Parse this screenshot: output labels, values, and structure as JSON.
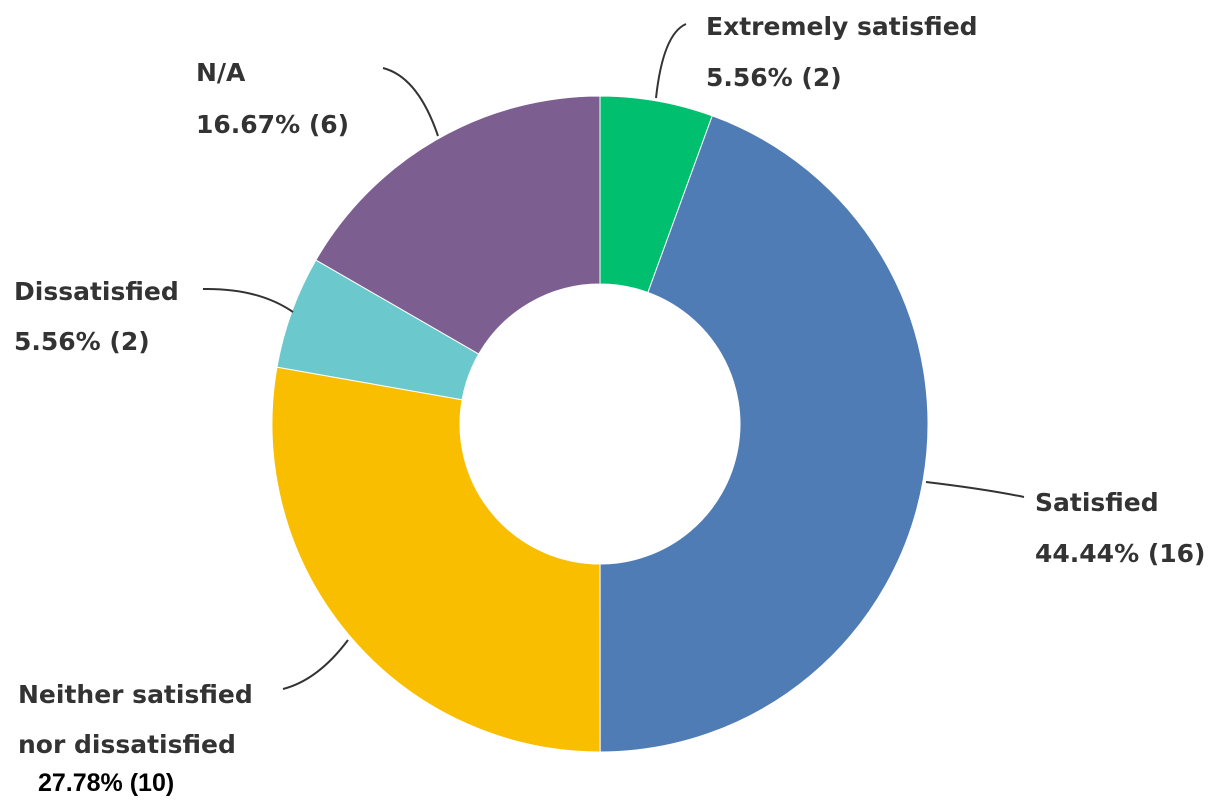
{
  "chart_data": {
    "type": "pie",
    "donut": true,
    "slices": [
      {
        "label": "Extremely satisfied",
        "value": 5.56,
        "count": 2,
        "value_text": "5.56% (2)",
        "color": "#00BF6F"
      },
      {
        "label": "Satisfied",
        "value": 44.44,
        "count": 16,
        "value_text": "44.44% (16)",
        "color": "#507CB6"
      },
      {
        "label": "Neither satisfied nor dissatisfied",
        "label_lines": [
          "Neither satisfied",
          "nor dissatisfied"
        ],
        "value": 27.78,
        "count": 10,
        "value_text": "27.78% (10)",
        "color": "#F9BE00"
      },
      {
        "label": "Dissatisfied",
        "value": 5.56,
        "count": 2,
        "value_text": "5.56% (2)",
        "color": "#6BC8CD"
      },
      {
        "label": "N/A",
        "value": 16.67,
        "count": 6,
        "value_text": "16.67% (6)",
        "color": "#7D5E90"
      }
    ]
  }
}
